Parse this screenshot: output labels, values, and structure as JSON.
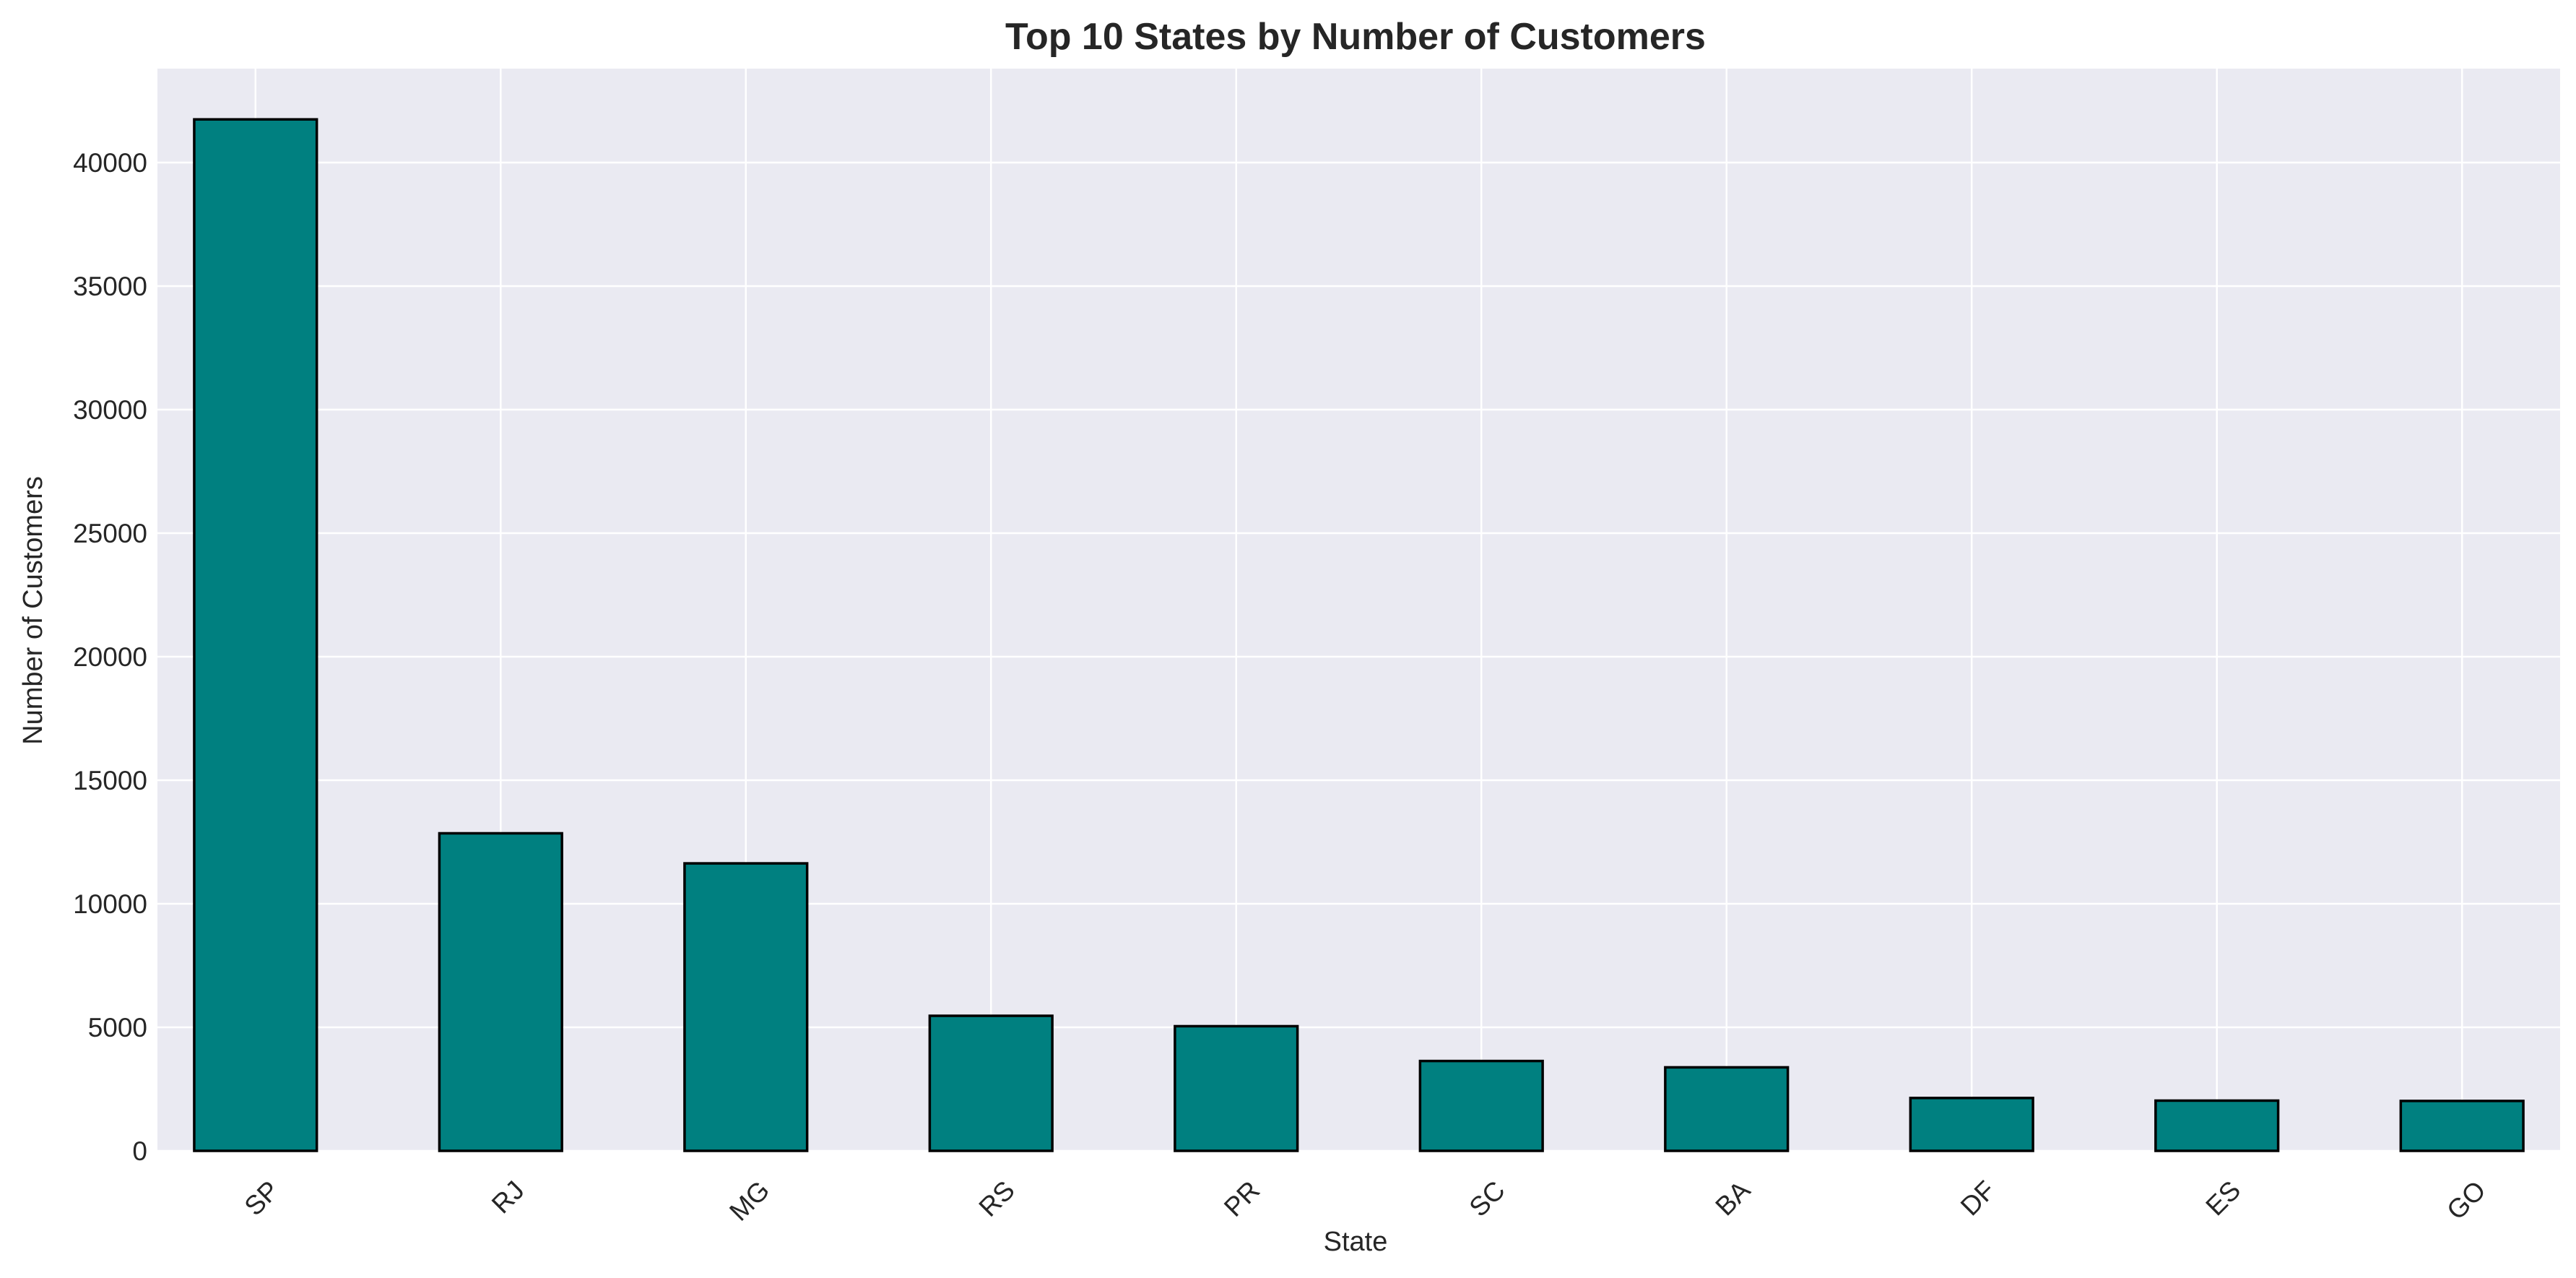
{
  "chart_data": {
    "type": "bar",
    "title": "Top 10 States by Number of Customers",
    "xlabel": "State",
    "ylabel": "Number of Customers",
    "categories": [
      "SP",
      "RJ",
      "MG",
      "RS",
      "PR",
      "SC",
      "BA",
      "DF",
      "ES",
      "GO"
    ],
    "values": [
      41746,
      12852,
      11635,
      5466,
      5045,
      3637,
      3380,
      2140,
      2033,
      2020
    ],
    "ylim": [
      0,
      43800
    ],
    "yticks": [
      0,
      5000,
      10000,
      15000,
      20000,
      25000,
      30000,
      35000,
      40000
    ],
    "grid": true,
    "bar_color": "#008080",
    "bar_edge_color": "#000000",
    "background_color": "#eaeaf2",
    "grid_color": "#ffffff"
  }
}
